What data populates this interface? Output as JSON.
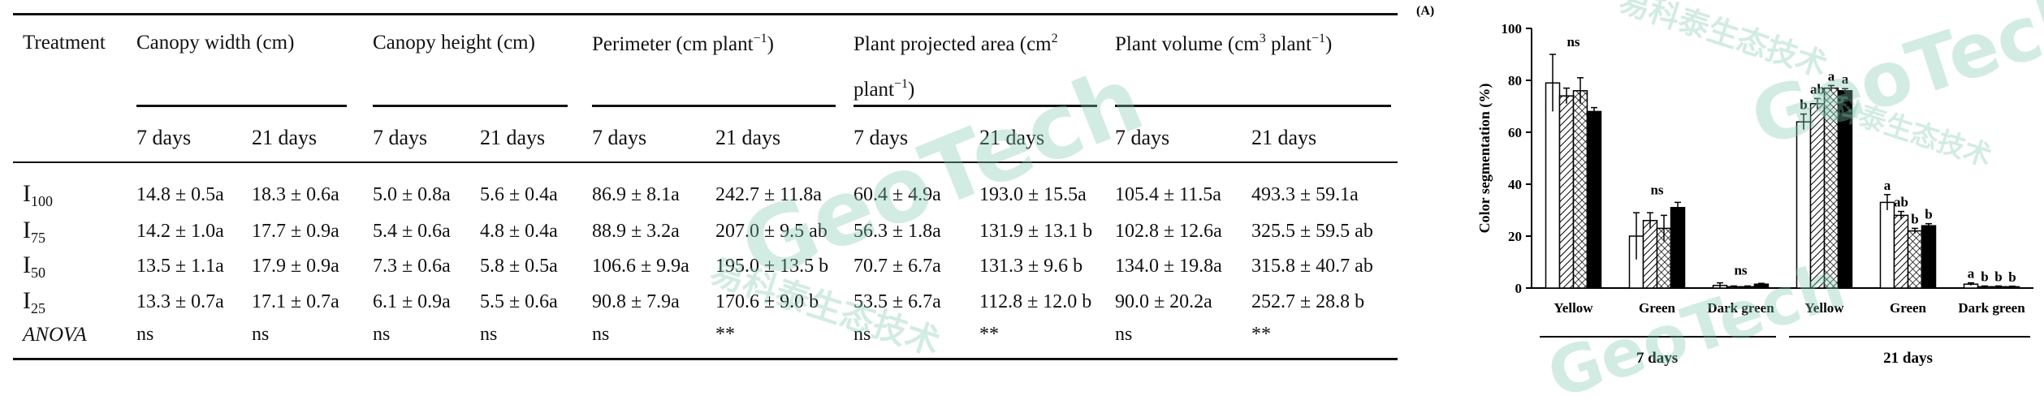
{
  "table": {
    "columns": [
      {
        "key": "treatment",
        "label": "Treatment"
      },
      {
        "key": "canopy_width",
        "label": "Canopy width (cm)"
      },
      {
        "key": "canopy_height",
        "label": "Canopy height (cm)"
      },
      {
        "key": "perimeter",
        "label_pre": "Perimeter (cm plant",
        "label_sup": "−1",
        "label_post": ")"
      },
      {
        "key": "projected_area",
        "label_pre": "Plant projected area (cm",
        "label_sup": "2",
        "label_line2_pre": "plant",
        "label_line2_sup": "−1",
        "label_line2_post": ")"
      },
      {
        "key": "volume",
        "label_pre": "Plant volume (cm",
        "label_sup": "3",
        "label_mid": " plant",
        "label_sup2": "−1",
        "label_post": ")"
      }
    ],
    "subheaders": [
      "7 days",
      "21 days"
    ],
    "rows": [
      {
        "label_main": "I",
        "label_sub": "100",
        "values": [
          "14.8 ± 0.5a",
          "18.3 ± 0.6a",
          "5.0 ± 0.8a",
          "5.6 ± 0.4a",
          "86.9 ± 8.1a",
          "242.7 ± 11.8a",
          "60.4 ± 4.9a",
          "193.0 ± 15.5a",
          "105.4 ± 11.5a",
          "493.3 ± 59.1a"
        ]
      },
      {
        "label_main": "I",
        "label_sub": "75",
        "values": [
          "14.2 ± 1.0a",
          "17.7 ± 0.9a",
          "5.4 ± 0.6a",
          "4.8 ± 0.4a",
          "88.9 ± 3.2a",
          "207.0 ± 9.5 ab",
          "56.3 ± 1.8a",
          "131.9 ± 13.1 b",
          "102.8 ± 12.6a",
          "325.5 ± 59.5 ab"
        ]
      },
      {
        "label_main": "I",
        "label_sub": "50",
        "values": [
          "13.5 ± 1.1a",
          "17.9 ± 0.9a",
          "7.3 ± 0.6a",
          "5.8 ± 0.5a",
          "106.6 ± 9.9a",
          "195.0 ± 13.5 b",
          "70.7 ± 6.7a",
          "131.3 ± 9.6 b",
          "134.0 ± 19.8a",
          "315.8 ± 40.7 ab"
        ]
      },
      {
        "label_main": "I",
        "label_sub": "25",
        "values": [
          "13.3 ± 0.7a",
          "17.1 ± 0.7a",
          "6.1 ± 0.9a",
          "5.5 ± 0.6a",
          "90.8 ± 7.9a",
          "170.6 ± 9.0 b",
          "53.5 ± 6.7a",
          "112.8 ± 12.0 b",
          "90.0 ± 20.2a",
          "252.7 ± 28.8 b"
        ]
      },
      {
        "label_main": "ANOVA",
        "label_sub": "",
        "values": [
          "ns",
          "ns",
          "ns",
          "ns",
          "ns",
          "**",
          "ns",
          "**",
          "ns",
          "**"
        ]
      }
    ]
  },
  "chart_data": {
    "type": "bar",
    "panel_label": "(A)",
    "ylabel": "Color segmentation (%)",
    "ylim": [
      0,
      100
    ],
    "yticks": [
      0,
      20,
      40,
      60,
      80,
      100
    ],
    "groups": [
      "7 days",
      "21 days"
    ],
    "categories": [
      "Yellow",
      "Green",
      "Dark green",
      "Yellow",
      "Green",
      "Dark green"
    ],
    "series": [
      {
        "fill": "#ffffff",
        "pattern": "none",
        "values": [
          79,
          20,
          1,
          64,
          33,
          1.5
        ],
        "errors": [
          11,
          9,
          1,
          3,
          3,
          0.5
        ]
      },
      {
        "fill": "#ffffff",
        "pattern": "diagonal",
        "values": [
          74,
          26,
          0.5,
          71,
          28,
          0.5
        ],
        "errors": [
          3,
          3,
          0.3,
          2,
          1.5,
          0.3
        ]
      },
      {
        "fill": "#ffffff",
        "pattern": "crosshatch",
        "values": [
          76,
          23,
          0.5,
          77,
          22,
          0.5
        ],
        "errors": [
          5,
          5,
          0.3,
          1,
          1,
          0.3
        ]
      },
      {
        "fill": "#000000",
        "pattern": "solid",
        "values": [
          68,
          31,
          1.5,
          76,
          24,
          0.5
        ],
        "errors": [
          1.5,
          2,
          0.3,
          0.8,
          0.8,
          0.2
        ]
      }
    ],
    "annotations": [
      "ns",
      "ns",
      "ns",
      "",
      "",
      "",
      "",
      "",
      "",
      "",
      "",
      "",
      ""
    ],
    "group_letters": [
      [
        "",
        "",
        "",
        ""
      ],
      [
        "",
        "",
        "",
        ""
      ],
      [
        "",
        "",
        "",
        ""
      ],
      [
        "b",
        "ab",
        "a",
        "a"
      ],
      [
        "a",
        "ab",
        "b",
        "b"
      ],
      [
        "a",
        "b",
        "b",
        "b"
      ]
    ],
    "group_ns": [
      "ns",
      "ns",
      "ns",
      "",
      "",
      ""
    ]
  },
  "watermarks": [
    "易科泰生态技术",
    "GeoTech",
    "易科泰生态技术",
    "GeoTech",
    "易科泰生态技术",
    "GeoTech"
  ]
}
